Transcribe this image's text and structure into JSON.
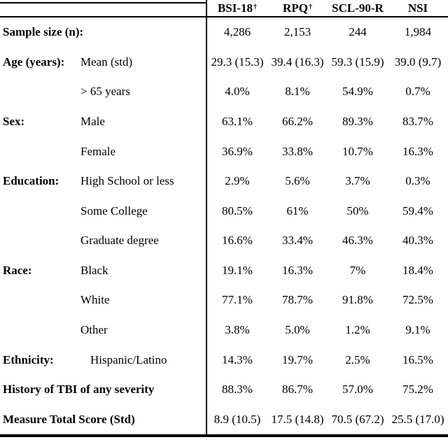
{
  "table": {
    "columns": [
      {
        "label": "BSI-18",
        "sup": "†"
      },
      {
        "label": "RPQ",
        "sup": "†"
      },
      {
        "label": "SCL-90-R",
        "sup": ""
      },
      {
        "label": "NSI",
        "sup": ""
      }
    ],
    "rows": [
      {
        "category": "Sample size (n):",
        "sub": "",
        "values": [
          "4,286",
          "2,153",
          "244",
          "1,984"
        ]
      },
      {
        "category": "Age (years):",
        "sub": "Mean (std)",
        "values": [
          "29.3 (15.3)",
          "39.4 (16.3)",
          "59.3 (15.9)",
          "39.0 (9.7)"
        ]
      },
      {
        "category": "",
        "sub": "> 65 years",
        "values": [
          "4.0%",
          "8.1%",
          "54.9%",
          "0.7%"
        ]
      },
      {
        "category": "Sex:",
        "sub": "Male",
        "values": [
          "63.1%",
          "66.2%",
          "89.3%",
          "83.7%"
        ]
      },
      {
        "category": "",
        "sub": "Female",
        "values": [
          "36.9%",
          "33.8%",
          "10.7%",
          "16.3%"
        ]
      },
      {
        "category": "Education:",
        "sub": "High School or less",
        "values": [
          "2.9%",
          "5.6%",
          "3.7%",
          "0.3%"
        ]
      },
      {
        "category": "",
        "sub": "Some College",
        "values": [
          "80.5%",
          "61%",
          "50%",
          "59.4%"
        ]
      },
      {
        "category": "",
        "sub": "Graduate degree",
        "values": [
          "16.6%",
          "33.4%",
          "46.3%",
          "40.3%"
        ]
      },
      {
        "category": "Race:",
        "sub": "Black",
        "values": [
          "19.1%",
          "16.3%",
          "7%",
          "18.4%"
        ]
      },
      {
        "category": "",
        "sub": "White",
        "values": [
          "77.1%",
          "78.7%",
          "91.8%",
          "72.5%"
        ]
      },
      {
        "category": "",
        "sub": "Other",
        "values": [
          "3.8%",
          "5.0%",
          "1.2%",
          "9.1%"
        ]
      },
      {
        "category": "Ethnicity:",
        "sub": "Hispanic/Latino",
        "values": [
          "14.3%",
          "19.7%",
          "2.5%",
          "16.5%"
        ]
      },
      {
        "category": "History of TBI of any severity",
        "sub": "",
        "values": [
          "88.3%",
          "86.7%",
          "57.0%",
          "75.2%"
        ]
      },
      {
        "category": "Measure Total Score (Std)",
        "sub": "",
        "values": [
          "8.9 (10.5)",
          "17.5 (14.8)",
          "70.5 (67.2)",
          "25.5 (17.0)"
        ]
      }
    ]
  }
}
